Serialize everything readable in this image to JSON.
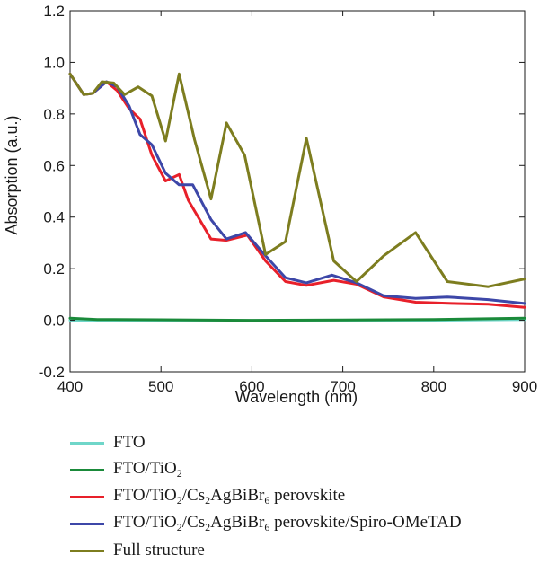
{
  "chart_data": {
    "type": "line",
    "xlabel": "Wavelength (nm)",
    "ylabel": "Absorption (a.u.)",
    "xlim": [
      400,
      900
    ],
    "ylim": [
      -0.2,
      1.2
    ],
    "xticks": [
      "400",
      "500",
      "600",
      "700",
      "800",
      "900"
    ],
    "yticks": [
      "1.2",
      "1.0",
      "0.8",
      "0.6",
      "0.4",
      "0.2",
      "0.0",
      "-0.2"
    ],
    "grid": false,
    "legend_position": "bottom",
    "series": [
      {
        "name": "FTO",
        "color": "#6fd6c9",
        "x": [
          400,
          500,
          600,
          700,
          800,
          900
        ],
        "y": [
          0.0,
          0.0,
          -0.002,
          -0.001,
          0.0,
          0.003
        ]
      },
      {
        "name": "FTO/TiO2",
        "color": "#1a8a3a",
        "x": [
          400,
          430,
          500,
          600,
          700,
          800,
          900
        ],
        "y": [
          0.008,
          0.003,
          0.002,
          0.0,
          0.001,
          0.003,
          0.008
        ]
      },
      {
        "name": "FTO/TiO2/Cs2AgBiBr6 perovskite",
        "color": "#e8202a",
        "x": [
          400,
          415,
          425,
          440,
          452,
          465,
          477,
          490,
          505,
          520,
          530,
          555,
          572,
          595,
          615,
          637,
          660,
          690,
          715,
          745,
          780,
          820,
          860,
          900
        ],
        "y": [
          0.955,
          0.875,
          0.88,
          0.925,
          0.89,
          0.82,
          0.78,
          0.64,
          0.54,
          0.565,
          0.465,
          0.315,
          0.31,
          0.33,
          0.23,
          0.15,
          0.135,
          0.155,
          0.14,
          0.09,
          0.07,
          0.065,
          0.062,
          0.05
        ]
      },
      {
        "name": "FTO/TiO2/Cs2AgBiBr6 perovskite/Spiro-OMeTAD",
        "color": "#3d47a8",
        "x": [
          400,
          415,
          425,
          440,
          452,
          465,
          477,
          490,
          505,
          520,
          535,
          555,
          572,
          593,
          615,
          637,
          660,
          688,
          715,
          745,
          780,
          815,
          860,
          900
        ],
        "y": [
          0.955,
          0.875,
          0.88,
          0.925,
          0.905,
          0.83,
          0.72,
          0.68,
          0.57,
          0.525,
          0.525,
          0.39,
          0.315,
          0.34,
          0.25,
          0.165,
          0.145,
          0.175,
          0.145,
          0.095,
          0.085,
          0.09,
          0.08,
          0.065
        ]
      },
      {
        "name": "Full structure",
        "color": "#7d7d1f",
        "x": [
          400,
          415,
          425,
          435,
          448,
          460,
          475,
          490,
          505,
          520,
          537,
          555,
          572,
          592,
          615,
          637,
          660,
          690,
          715,
          745,
          780,
          815,
          860,
          900
        ],
        "y": [
          0.955,
          0.875,
          0.88,
          0.925,
          0.92,
          0.875,
          0.905,
          0.87,
          0.695,
          0.955,
          0.7,
          0.47,
          0.765,
          0.64,
          0.255,
          0.305,
          0.705,
          0.23,
          0.15,
          0.25,
          0.34,
          0.15,
          0.13,
          0.16
        ]
      }
    ]
  },
  "legend": {
    "items": [
      {
        "color": "#6fd6c9",
        "parts": [
          {
            "t": "FTO"
          }
        ]
      },
      {
        "color": "#1a8a3a",
        "parts": [
          {
            "t": "FTO/TiO"
          },
          {
            "s": "2"
          }
        ]
      },
      {
        "color": "#e8202a",
        "parts": [
          {
            "t": "FTO/TiO"
          },
          {
            "s": "2"
          },
          {
            "t": "/Cs"
          },
          {
            "s": "2"
          },
          {
            "t": "AgBiBr"
          },
          {
            "s": "6"
          },
          {
            "t": " perovskite"
          }
        ]
      },
      {
        "color": "#3d47a8",
        "parts": [
          {
            "t": "FTO/TiO"
          },
          {
            "s": "2"
          },
          {
            "t": "/Cs"
          },
          {
            "s": "2"
          },
          {
            "t": "AgBiBr"
          },
          {
            "s": "6"
          },
          {
            "t": " perovskite/Spiro-OMeTAD"
          }
        ]
      },
      {
        "color": "#7d7d1f",
        "parts": [
          {
            "t": "Full structure"
          }
        ]
      }
    ]
  }
}
